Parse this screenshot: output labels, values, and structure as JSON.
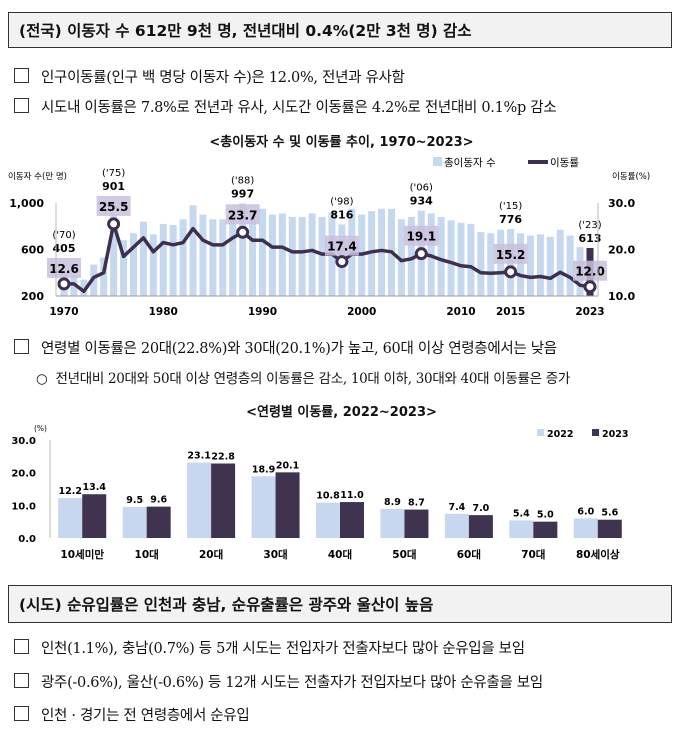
{
  "section1": {
    "header": "(전국) 이동자 수 612만 9천 명, 전년대비 0.4%(2만 3천 명) 감소",
    "bullets": [
      "인구이동률(인구 백 명당 이동자 수)은 12.0%, 전년과 유사함",
      "시도내 이동률은 7.8%로 전년과 유사, 시도간 이동률은 4.2%로 전년대비 0.1%p 감소"
    ],
    "age_bullet": "연령별 이동률은 20대(22.8%)와 30대(20.1%)가 높고, 60대 이상 연령층에서는 낮음",
    "age_sub_marker": "○",
    "age_sub": "전년대비 20대와 50대 이상 연령층의 이동률은 감소, 10대 이하, 30대와 40대 이동률은 증가"
  },
  "section2": {
    "header": "(시도) 순유입률은 인천과 충남, 순유출률은 광주와 울산이 높음",
    "bullets": [
      "인천(1.1%), 충남(0.7%) 등 5개 시도는 전입자가 전출자보다 많아 순유입을 보임",
      "광주(-0.6%), 울산(-0.6%) 등 12개 시도는 전출자가 전입자보다 많아 순유출을 보임",
      "인천 · 경기는 전 연령층에서 순유입"
    ]
  },
  "colors": {
    "bar_light": "#c5d8f0",
    "line_dark": "#3d2f4f",
    "label_box": "#c9bfdc",
    "bar2022": "#c6d7ef",
    "bar2023": "#3f3350"
  },
  "chart_data": [
    {
      "type": "bar+line",
      "title": "<총이동자 수 및 이동률 추이, 1970~2023>",
      "ylabel_left": "이동자 수(만 명)",
      "ylabel_right": "이동률(%)",
      "legend": [
        "총이동자 수",
        "이동률"
      ],
      "legend_position": "top-right",
      "ylim_left": [
        200,
        1000
      ],
      "ylim_right": [
        10,
        30
      ],
      "yticks_left": [
        "200",
        "600",
        "1,000"
      ],
      "yticks_right": [
        "10.0",
        "20.0",
        "30.0"
      ],
      "xticks": [
        "1970",
        "1980",
        "1990",
        "2000",
        "2010",
        "2015",
        "2023"
      ],
      "x": [
        1970,
        1971,
        1972,
        1973,
        1974,
        1975,
        1976,
        1977,
        1978,
        1979,
        1980,
        1981,
        1982,
        1983,
        1984,
        1985,
        1986,
        1987,
        1988,
        1989,
        1990,
        1991,
        1992,
        1993,
        1994,
        1995,
        1996,
        1997,
        1998,
        1999,
        2000,
        2001,
        2002,
        2003,
        2004,
        2005,
        2006,
        2007,
        2008,
        2009,
        2010,
        2011,
        2012,
        2013,
        2014,
        2015,
        2016,
        2017,
        2018,
        2019,
        2020,
        2021,
        2022,
        2023
      ],
      "movers": [
        405,
        380,
        340,
        470,
        530,
        901,
        680,
        740,
        840,
        730,
        820,
        810,
        860,
        980,
        900,
        860,
        860,
        920,
        997,
        940,
        950,
        900,
        910,
        880,
        880,
        910,
        880,
        920,
        816,
        950,
        900,
        930,
        950,
        950,
        860,
        880,
        934,
        910,
        880,
        850,
        830,
        820,
        750,
        740,
        770,
        776,
        740,
        720,
        730,
        710,
        770,
        720,
        620,
        613
      ],
      "rate": [
        12.6,
        12.6,
        11.0,
        14.0,
        15.0,
        25.5,
        18.5,
        20.5,
        22.5,
        19.5,
        21.5,
        21.0,
        21.5,
        24.5,
        22.0,
        21.0,
        21.0,
        22.5,
        23.7,
        22.0,
        22.0,
        20.5,
        20.5,
        19.5,
        19.5,
        19.8,
        19.0,
        19.0,
        17.4,
        19.0,
        19.0,
        19.5,
        19.8,
        19.5,
        17.6,
        18.0,
        19.1,
        18.6,
        17.8,
        17.2,
        16.5,
        16.3,
        15.0,
        14.9,
        15.0,
        15.2,
        14.4,
        14.0,
        14.2,
        13.8,
        15.1,
        14.0,
        12.3,
        12.0
      ],
      "annotations": [
        {
          "year": 1970,
          "tag": "('70)",
          "movers": "405",
          "rate": "12.6"
        },
        {
          "year": 1975,
          "tag": "('75)",
          "movers": "901",
          "rate": "25.5"
        },
        {
          "year": 1988,
          "tag": "('88)",
          "movers": "997",
          "rate": "23.7"
        },
        {
          "year": 1998,
          "tag": "('98)",
          "movers": "816",
          "rate": "17.4"
        },
        {
          "year": 2006,
          "tag": "('06)",
          "movers": "934",
          "rate": "19.1"
        },
        {
          "year": 2015,
          "tag": "('15)",
          "movers": "776",
          "rate": "15.2"
        },
        {
          "year": 2023,
          "tag": "('23)",
          "movers": "613",
          "rate": "12.0"
        }
      ]
    },
    {
      "type": "bar",
      "title": "<연령별 이동률, 2022~2023>",
      "ylabel": "(%)",
      "ylim": [
        0,
        30
      ],
      "yticks": [
        "0.0",
        "10.0",
        "20.0",
        "30.0"
      ],
      "legend_position": "top-right",
      "categories": [
        "10세미만",
        "10대",
        "20대",
        "30대",
        "40대",
        "50대",
        "60대",
        "70대",
        "80세이상"
      ],
      "series": [
        {
          "name": "2022",
          "values": [
            12.2,
            9.5,
            23.1,
            18.9,
            10.8,
            8.9,
            7.4,
            5.4,
            6.0
          ]
        },
        {
          "name": "2023",
          "values": [
            13.4,
            9.6,
            22.8,
            20.1,
            11.0,
            8.7,
            7.0,
            5.0,
            5.6
          ]
        }
      ]
    }
  ]
}
